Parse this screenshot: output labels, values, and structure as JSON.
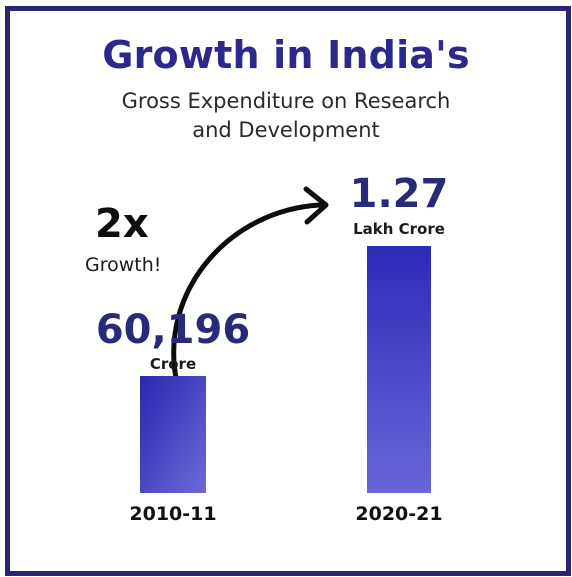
{
  "title": "Growth in India's",
  "subtitle_lines": [
    "Gross Expenditure on Research",
    "and Development"
  ],
  "growth": {
    "multiplier": "2x",
    "label": "Growth!"
  },
  "colors": {
    "bar": "#2e2ab8",
    "bar_light": "#6a66d8",
    "title": "#2b2a8c",
    "border": "#2a2476"
  },
  "chart_data": {
    "type": "bar",
    "title": "Growth in India's Gross Expenditure on Research and Development",
    "categories": [
      "2010-11",
      "2020-21"
    ],
    "values": [
      60196,
      127000
    ],
    "unit": "Crore",
    "value_labels": [
      {
        "value": "60,196",
        "unit": "Crore"
      },
      {
        "value": "1.27",
        "unit": "Lakh Crore"
      }
    ],
    "annotation": "2x Growth!",
    "ylim": [
      0,
      127000
    ],
    "grid": false,
    "legend": "none"
  }
}
